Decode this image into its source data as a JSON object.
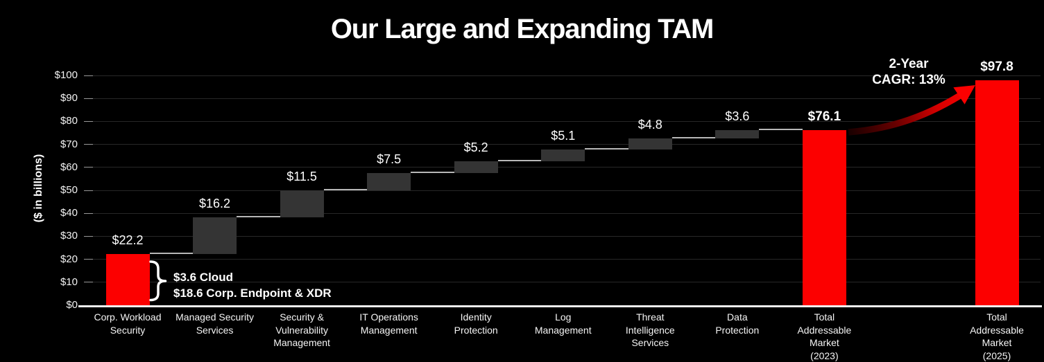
{
  "title": "Our Large and Expanding TAM",
  "chart_data": {
    "type": "waterfall",
    "title": "Our Large and Expanding TAM",
    "ylabel": "($ in billions)",
    "xlabel": "",
    "grid": true,
    "legend": false,
    "y_axis": {
      "min": 0,
      "max": 100,
      "tick_step": 10,
      "tick_labels": [
        "$0",
        "$10",
        "$20",
        "$30",
        "$40",
        "$50",
        "$60",
        "$70",
        "$80",
        "$90",
        "$100"
      ]
    },
    "bars": [
      {
        "name": "Corp. Workload Security",
        "label_lines": [
          "Corp. Workload",
          "Security"
        ],
        "value": 22.2,
        "value_label": "$22.2",
        "start": 0,
        "end": 22.2,
        "style": "red",
        "value_bold": false
      },
      {
        "name": "Managed Security Services",
        "label_lines": [
          "Managed Security",
          "Services"
        ],
        "value": 16.2,
        "value_label": "$16.2",
        "start": 22.2,
        "end": 38.4,
        "style": "gray",
        "value_bold": false
      },
      {
        "name": "Security & Vulnerability Management",
        "label_lines": [
          "Security &",
          "Vulnerability",
          "Management"
        ],
        "value": 11.5,
        "value_label": "$11.5",
        "start": 38.4,
        "end": 49.9,
        "style": "gray",
        "value_bold": false
      },
      {
        "name": "IT Operations Management",
        "label_lines": [
          "IT Operations",
          "Management"
        ],
        "value": 7.5,
        "value_label": "$7.5",
        "start": 49.9,
        "end": 57.4,
        "style": "gray",
        "value_bold": false
      },
      {
        "name": "Identity Protection",
        "label_lines": [
          "Identity",
          "Protection"
        ],
        "value": 5.2,
        "value_label": "$5.2",
        "start": 57.4,
        "end": 62.6,
        "style": "gray",
        "value_bold": false
      },
      {
        "name": "Log Management",
        "label_lines": [
          "Log",
          "Management"
        ],
        "value": 5.1,
        "value_label": "$5.1",
        "start": 62.6,
        "end": 67.7,
        "style": "gray",
        "value_bold": false
      },
      {
        "name": "Threat Intelligence Services",
        "label_lines": [
          "Threat",
          "Intelligence",
          "Services"
        ],
        "value": 4.8,
        "value_label": "$4.8",
        "start": 67.7,
        "end": 72.5,
        "style": "gray",
        "value_bold": false
      },
      {
        "name": "Data Protection",
        "label_lines": [
          "Data",
          "Protection"
        ],
        "value": 3.6,
        "value_label": "$3.6",
        "start": 72.5,
        "end": 76.1,
        "style": "gray",
        "value_bold": false
      },
      {
        "name": "Total Addressable Market (2023)",
        "label_lines": [
          "Total",
          "Addressable",
          "Market",
          "(2023)"
        ],
        "value": 76.1,
        "value_label": "$76.1",
        "start": 0,
        "end": 76.1,
        "style": "red",
        "value_bold": true
      },
      {
        "name": "Total Addressable Market (2025)",
        "label_lines": [
          "Total",
          "Addressable",
          "Market",
          "(2025)"
        ],
        "value": 97.8,
        "value_label": "$97.8",
        "start": 0,
        "end": 97.8,
        "style": "red",
        "value_bold": true
      }
    ],
    "annotations": {
      "cagr_line1": "2-Year",
      "cagr_line2": "CAGR: 13%",
      "breakdown_line1": "$3.6 Cloud",
      "breakdown_line2": "$18.6 Corp. Endpoint & XDR"
    },
    "colors": {
      "red": "#fc0000",
      "gray": "#343434",
      "background": "#000000",
      "grid": "#282828",
      "tick": "#9a9a9a",
      "axis": "#f0f0f0",
      "connector": "#b8b8b8",
      "text": "#ffffff"
    }
  }
}
